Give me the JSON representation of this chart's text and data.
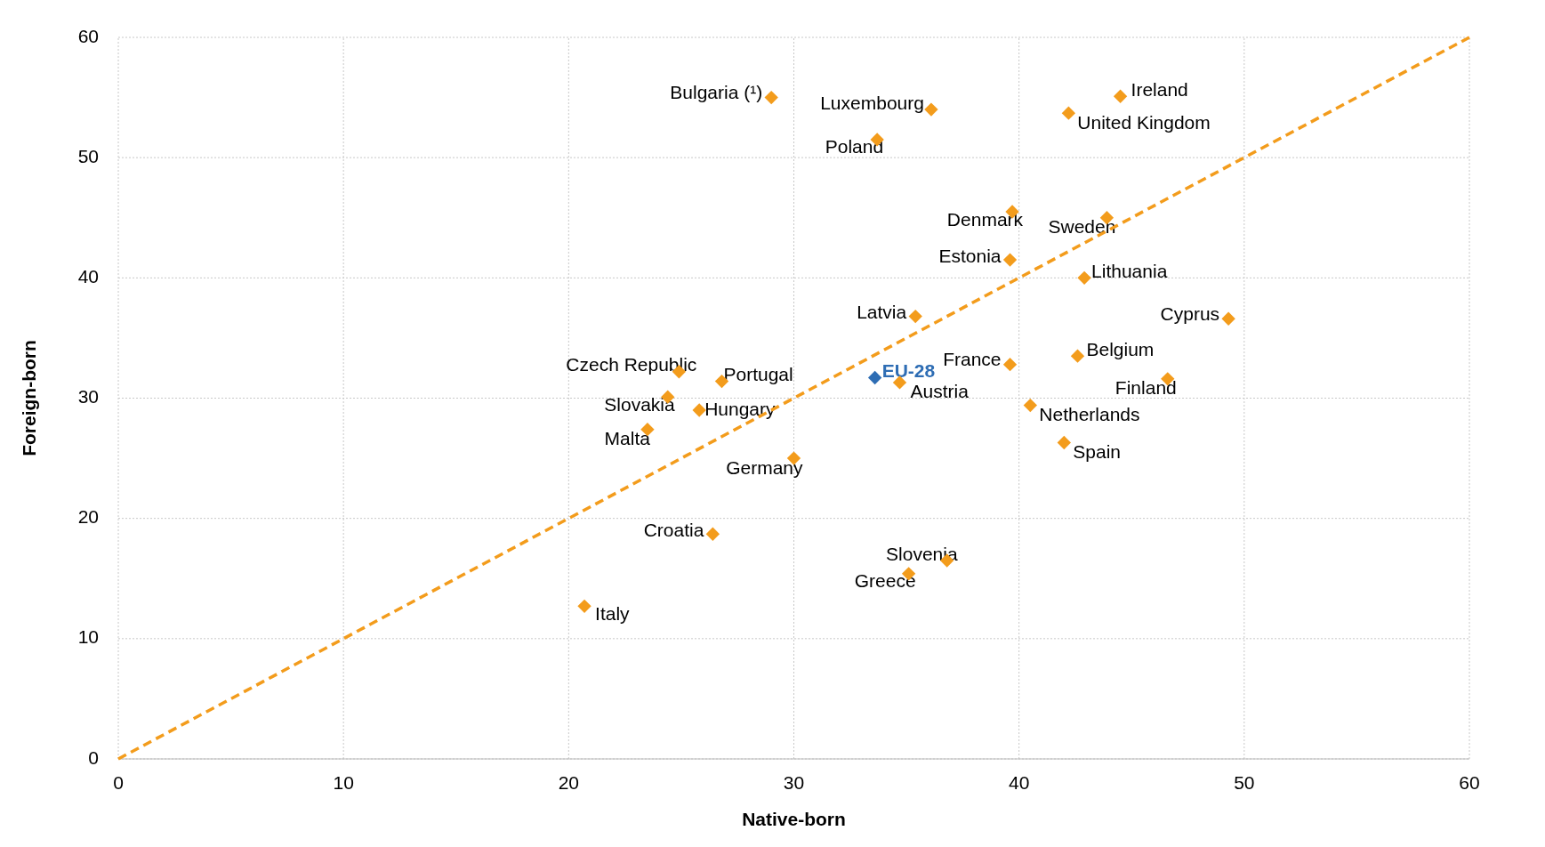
{
  "chart_data": {
    "type": "scatter",
    "xlabel": "Native-born",
    "ylabel": "Foreign-born",
    "xlim": [
      0,
      60
    ],
    "ylim": [
      0,
      60
    ],
    "xticks": [
      0,
      10,
      20,
      30,
      40,
      50,
      60
    ],
    "yticks": [
      0,
      10,
      20,
      30,
      40,
      50,
      60
    ],
    "grid": true,
    "marker": "diamond",
    "series": [
      {
        "x": [
          29.0,
          36.1,
          44.5,
          42.2,
          33.7,
          39.7,
          43.9,
          39.6,
          42.9,
          35.4,
          49.3,
          42.6,
          39.6,
          46.6,
          33.6,
          34.7,
          24.9,
          26.8,
          24.4,
          25.8,
          40.5,
          23.5,
          42.0,
          30.0,
          26.4,
          36.8,
          35.1,
          20.7
        ],
        "values": [
          55.0,
          54.0,
          55.1,
          53.7,
          51.5,
          45.5,
          45.0,
          41.5,
          40.0,
          36.8,
          36.6,
          33.5,
          32.8,
          31.6,
          31.7,
          31.3,
          32.2,
          31.4,
          30.1,
          29.0,
          29.4,
          27.4,
          26.3,
          25.0,
          18.7,
          16.5,
          15.4,
          12.7
        ],
        "colors": [
          "#f39c1c",
          "#f39c1c",
          "#f39c1c",
          "#f39c1c",
          "#f39c1c",
          "#f39c1c",
          "#f39c1c",
          "#f39c1c",
          "#f39c1c",
          "#f39c1c",
          "#f39c1c",
          "#f39c1c",
          "#f39c1c",
          "#f39c1c",
          "#2e6db4",
          "#f39c1c",
          "#f39c1c",
          "#f39c1c",
          "#f39c1c",
          "#f39c1c",
          "#f39c1c",
          "#f39c1c",
          "#f39c1c",
          "#f39c1c",
          "#f39c1c",
          "#f39c1c",
          "#f39c1c",
          "#f39c1c"
        ]
      },
      {
        "type": "line",
        "x": [
          0,
          60
        ],
        "values": [
          0,
          60
        ],
        "color": "#f39c1c",
        "line_style": "dashed",
        "marker": "none"
      }
    ],
    "annotations": [
      {
        "text": "Bulgaria (¹)",
        "x": 29.0,
        "y": 55.0
      },
      {
        "text": "Luxembourg",
        "x": 36.1,
        "y": 54.0
      },
      {
        "text": "Ireland",
        "x": 44.5,
        "y": 55.1
      },
      {
        "text": "United Kingdom",
        "x": 42.2,
        "y": 53.7
      },
      {
        "text": "Poland",
        "x": 33.7,
        "y": 51.5
      },
      {
        "text": "Denmark",
        "x": 39.7,
        "y": 45.5
      },
      {
        "text": "Sweden",
        "x": 43.9,
        "y": 45.0
      },
      {
        "text": "Estonia",
        "x": 39.6,
        "y": 41.5
      },
      {
        "text": "Lithuania",
        "x": 42.9,
        "y": 40.0
      },
      {
        "text": "Latvia",
        "x": 35.4,
        "y": 36.8
      },
      {
        "text": "Cyprus",
        "x": 49.3,
        "y": 36.6
      },
      {
        "text": "Belgium",
        "x": 42.6,
        "y": 33.5
      },
      {
        "text": "France",
        "x": 39.6,
        "y": 32.8
      },
      {
        "text": "Finland",
        "x": 46.6,
        "y": 31.6
      },
      {
        "text": "EU-28",
        "x": 33.6,
        "y": 31.7
      },
      {
        "text": "Austria",
        "x": 34.7,
        "y": 31.3
      },
      {
        "text": "Czech Republic",
        "x": 24.9,
        "y": 32.2
      },
      {
        "text": "Portugal",
        "x": 26.8,
        "y": 31.4
      },
      {
        "text": "Slovakia",
        "x": 24.4,
        "y": 30.1
      },
      {
        "text": "Hungary",
        "x": 25.8,
        "y": 29.0
      },
      {
        "text": "Netherlands",
        "x": 40.5,
        "y": 29.4
      },
      {
        "text": "Malta",
        "x": 23.5,
        "y": 27.4
      },
      {
        "text": "Spain",
        "x": 42.0,
        "y": 26.3
      },
      {
        "text": "Germany",
        "x": 30.0,
        "y": 25.0
      },
      {
        "text": "Croatia",
        "x": 26.4,
        "y": 18.7
      },
      {
        "text": "Slovenia",
        "x": 36.8,
        "y": 16.5
      },
      {
        "text": "Greece",
        "x": 35.1,
        "y": 15.4
      },
      {
        "text": "Italy",
        "x": 20.7,
        "y": 12.7
      }
    ]
  }
}
